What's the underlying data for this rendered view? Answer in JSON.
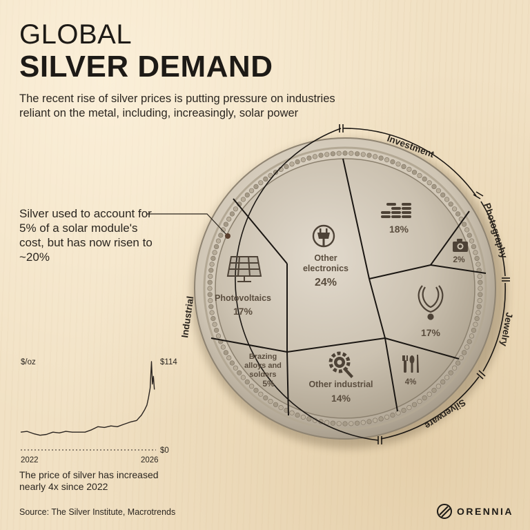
{
  "header": {
    "title_line1": "GLOBAL",
    "title_line2": "SILVER DEMAND",
    "subtitle": "The recent rise of silver prices is putting pressure on industries reliant on the metal, including, increasingly, solar power"
  },
  "annotation": "Silver used to account for 5% of a solar module's cost, but has now risen to ~20%",
  "chart_data": [
    {
      "type": "pie",
      "title": "",
      "groups": [
        "Investment",
        "Photography",
        "Jewelry",
        "Silverware",
        "Industrial"
      ],
      "slices": [
        {
          "label": "",
          "group": "Investment",
          "value": 18,
          "value_label": "18%",
          "icon": "coin-stack-icon"
        },
        {
          "label": "",
          "group": "Photography",
          "value": 2,
          "value_label": "2%",
          "icon": "camera-icon"
        },
        {
          "label": "",
          "group": "Jewelry",
          "value": 17,
          "value_label": "17%",
          "icon": "necklace-icon"
        },
        {
          "label": "",
          "group": "Silverware",
          "value": 4,
          "value_label": "4%",
          "icon": "cutlery-icon"
        },
        {
          "label": "Other industrial",
          "group": "Industrial",
          "value": 14,
          "value_label": "14%",
          "icon": "gear-wrench-icon"
        },
        {
          "label": "Brazing alloys and solders",
          "group": "Industrial",
          "value": 5,
          "value_label": "5%",
          "icon": ""
        },
        {
          "label": "Photovoltaics",
          "group": "Industrial",
          "value": 17,
          "value_label": "17%",
          "icon": "solar-panel-icon"
        },
        {
          "label": "Other electronics",
          "group": "Industrial",
          "value": 24,
          "value_label": "24%",
          "icon": "plug-icon"
        }
      ],
      "colors": {
        "coin_fill": "#cdc3b2",
        "segment_line": "#1a1612",
        "label": "#5a4d3e"
      }
    },
    {
      "type": "line",
      "title": "",
      "ylabel": "$/oz",
      "x_tick_labels": [
        "2022",
        "2026"
      ],
      "y_tick_labels": [
        "$114",
        "$0"
      ],
      "xlim": [
        2022,
        2026.2
      ],
      "ylim": [
        0,
        114
      ],
      "series": [
        {
          "x": [
            2022.0,
            2022.2,
            2022.4,
            2022.6,
            2022.8,
            2023.0,
            2023.2,
            2023.4,
            2023.6,
            2023.8,
            2024.0,
            2024.2,
            2024.4,
            2024.6,
            2024.8,
            2025.0,
            2025.2,
            2025.4,
            2025.6,
            2025.75,
            2025.85,
            2025.92,
            2025.97,
            2026.02,
            2026.06,
            2026.09,
            2026.12,
            2026.15
          ],
          "y": [
            23,
            24,
            21,
            19,
            20,
            23,
            22,
            24,
            23,
            23,
            23,
            26,
            30,
            29,
            31,
            30,
            33,
            36,
            38,
            45,
            52,
            58,
            68,
            80,
            114,
            85,
            95,
            78
          ]
        }
      ],
      "caption": "The price of silver has increased nearly 4x since 2022",
      "colors": {
        "line": "#2a2420",
        "axis": "#2a2420"
      }
    }
  ],
  "source": "Source: The Silver Institute, Macrotrends",
  "logo": {
    "text": "ORENNIA",
    "icon": "orennia-logo-icon"
  }
}
